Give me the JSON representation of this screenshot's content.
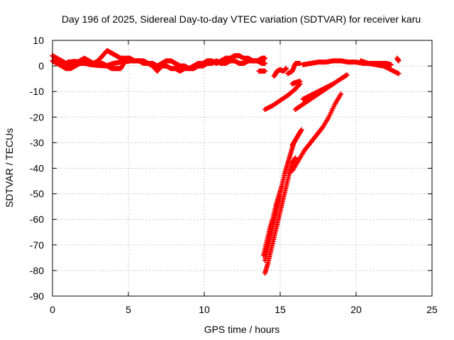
{
  "chart_data": {
    "type": "scatter",
    "title": "Day 196 of 2025, Sidereal Day-to-day VTEC variation (SDTVAR) for receiver karu",
    "xlabel": "GPS time / hours",
    "ylabel": "SDTVAR / TECUs",
    "xlim": [
      0,
      25
    ],
    "ylim": [
      -90,
      10
    ],
    "xticks": [
      0,
      5,
      10,
      15,
      20,
      25
    ],
    "yticks": [
      10,
      0,
      -10,
      -20,
      -30,
      -40,
      -50,
      -60,
      -70,
      -80,
      -90
    ],
    "grid": true,
    "marker": "plus",
    "color": "#ff0000",
    "series": [
      {
        "x": [
          0.0,
          0.3,
          0.6,
          0.9,
          1.2,
          1.5,
          1.8,
          2.1,
          2.4,
          2.7,
          3.0,
          3.3,
          3.6,
          3.9,
          4.2,
          4.5,
          4.8,
          5.1,
          5.4,
          5.7,
          6.0,
          6.3,
          6.6,
          6.9,
          7.2,
          7.5,
          7.8,
          8.1,
          8.4,
          8.7,
          9.0,
          9.3,
          9.6,
          9.9,
          10.2,
          10.5,
          10.8,
          11.1,
          11.4,
          11.7,
          12.0,
          12.3,
          12.6,
          12.9,
          13.2,
          13.5,
          13.8,
          14.0
        ],
        "y": [
          4,
          3,
          2,
          1,
          0,
          1,
          2,
          3,
          2,
          1,
          2,
          4,
          6,
          5,
          4,
          3,
          3,
          3,
          2,
          2,
          2,
          1,
          1,
          0,
          1,
          2,
          2,
          1,
          0,
          0,
          -1,
          0,
          1,
          1,
          2,
          2,
          1,
          2,
          3,
          3,
          4,
          4,
          3,
          3,
          2,
          2,
          3,
          3
        ]
      },
      {
        "x": [
          0.0,
          0.3,
          0.6,
          0.9,
          1.2,
          1.5,
          1.8,
          2.1,
          2.4,
          2.7,
          3.0,
          3.3,
          3.6,
          3.9,
          4.2,
          4.5,
          4.8,
          5.1,
          5.4,
          5.7,
          6.0,
          6.3,
          6.6,
          6.9,
          7.2,
          7.5,
          7.8,
          8.1,
          8.4,
          8.7,
          9.0,
          9.3,
          9.6,
          9.9,
          10.2,
          10.5,
          10.8,
          11.1,
          11.4,
          11.7,
          12.0,
          12.3,
          12.6,
          12.9,
          13.2,
          13.5,
          13.8,
          14.0
        ],
        "y": [
          2,
          1,
          0,
          -1,
          -1,
          0,
          1,
          1,
          1,
          1,
          1,
          1,
          0,
          -1,
          -1,
          -1,
          2,
          2,
          2,
          2,
          1,
          1,
          0,
          -2,
          0,
          0,
          -1,
          -1,
          -2,
          -1,
          -1,
          -1,
          0,
          0,
          1,
          1,
          2,
          1,
          1,
          2,
          2,
          1,
          1,
          2,
          2,
          2,
          1,
          1
        ]
      },
      {
        "x": [
          1.0,
          1.5,
          2.0,
          2.5,
          3.0,
          3.5,
          4.0,
          4.5,
          5.0
        ],
        "y": [
          1.5,
          1.8,
          1.2,
          0.5,
          0.2,
          0.0,
          1.0,
          1.5,
          1.8
        ]
      },
      {
        "x": [
          13.6,
          13.8,
          14.0
        ],
        "y": [
          -2,
          -2,
          -2
        ]
      },
      {
        "x": [
          14.0,
          14.5,
          15.0,
          15.5,
          16.0,
          16.3
        ],
        "y": [
          -17,
          -15.5,
          -13.5,
          -11.5,
          -9,
          -7
        ]
      },
      {
        "x": [
          14.6,
          14.8,
          15.0,
          15.2,
          15.4
        ],
        "y": [
          -4,
          -2,
          -1.5,
          -2,
          -1
        ]
      },
      {
        "x": [
          15.5,
          15.8,
          16.0,
          16.3
        ],
        "y": [
          -3,
          -2,
          1,
          1
        ]
      },
      {
        "x": [
          15.8,
          16.0,
          16.3
        ],
        "y": [
          -7,
          -6.5,
          -6
        ]
      },
      {
        "x": [
          16.5,
          17.0,
          17.5,
          18.0,
          18.5,
          19.0,
          19.5,
          20.0,
          20.5,
          21.0,
          21.5,
          22.0,
          22.3
        ],
        "y": [
          0.5,
          1,
          1.5,
          1.5,
          2,
          2,
          1.5,
          1.5,
          1,
          1,
          1,
          1,
          0.5
        ]
      },
      {
        "x": [
          20.3,
          20.8,
          21.3,
          21.8,
          22.3,
          22.8
        ],
        "y": [
          2,
          1,
          0.5,
          0,
          -1.5,
          -3
        ]
      },
      {
        "x": [
          22.7,
          22.8
        ],
        "y": [
          3,
          2
        ]
      },
      {
        "x": [
          16.0,
          16.5,
          17.0,
          17.5,
          18.0,
          18.5,
          19.0,
          19.4
        ],
        "y": [
          -17,
          -15,
          -13,
          -11,
          -9,
          -7,
          -5,
          -3.5
        ]
      },
      {
        "x": [
          16.5,
          17.0,
          17.5,
          18.0,
          18.5
        ],
        "y": [
          -13,
          -11.5,
          -10,
          -8.5,
          -7
        ]
      },
      {
        "x": [
          15.8,
          16.0,
          16.2,
          16.4
        ],
        "y": [
          -31,
          -29,
          -27,
          -25
        ]
      },
      {
        "x": [
          15.8,
          16.2,
          16.6,
          17.0,
          17.4,
          17.8,
          18.2,
          18.6,
          19.0
        ],
        "y": [
          -41,
          -37,
          -33,
          -30,
          -27,
          -24,
          -20,
          -15,
          -11
        ]
      },
      {
        "x": [
          13.9,
          14.1,
          14.3,
          14.5,
          14.7,
          14.9,
          15.1,
          15.3,
          15.5,
          15.7,
          15.9
        ],
        "y": [
          -74,
          -69,
          -64,
          -60,
          -55,
          -51,
          -47,
          -42,
          -38,
          -34,
          -30
        ]
      },
      {
        "x": [
          14.0,
          14.2,
          14.4,
          14.6,
          14.8,
          15.0,
          15.2,
          15.4,
          15.6,
          15.8,
          16.0
        ],
        "y": [
          -81,
          -77,
          -72,
          -67,
          -62,
          -57,
          -52,
          -47,
          -42,
          -38,
          -36
        ]
      },
      {
        "x": [
          14.0,
          14.2,
          14.4,
          14.6,
          14.8,
          15.0
        ],
        "y": [
          -76,
          -71,
          -66,
          -61,
          -56,
          -51
        ]
      }
    ]
  }
}
